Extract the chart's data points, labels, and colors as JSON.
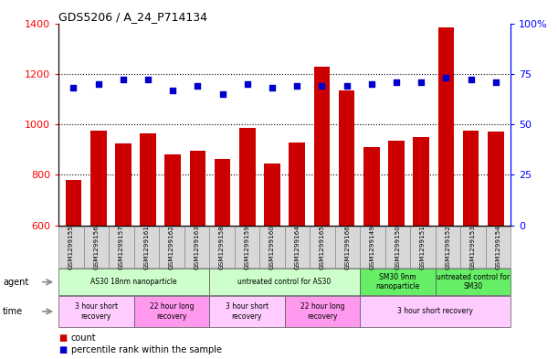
{
  "title": "GDS5206 / A_24_P714134",
  "samples": [
    "GSM1299155",
    "GSM1299156",
    "GSM1299157",
    "GSM1299161",
    "GSM1299162",
    "GSM1299163",
    "GSM1299158",
    "GSM1299159",
    "GSM1299160",
    "GSM1299164",
    "GSM1299165",
    "GSM1299166",
    "GSM1299149",
    "GSM1299150",
    "GSM1299151",
    "GSM1299152",
    "GSM1299153",
    "GSM1299154"
  ],
  "counts": [
    780,
    975,
    925,
    965,
    880,
    895,
    865,
    985,
    845,
    930,
    1230,
    1135,
    910,
    935,
    950,
    1385,
    975,
    970
  ],
  "percentiles": [
    68,
    70,
    72,
    72,
    67,
    69,
    65,
    70,
    68,
    69,
    69,
    69,
    70,
    71,
    71,
    73,
    72,
    71
  ],
  "ylim_left": [
    600,
    1400
  ],
  "ylim_right": [
    0,
    100
  ],
  "yticks_left": [
    600,
    800,
    1000,
    1200,
    1400
  ],
  "yticks_right": [
    0,
    25,
    50,
    75,
    100
  ],
  "bar_color": "#cc0000",
  "dot_color": "#0000cc",
  "agent_groups": [
    {
      "label": "AS30 18nm nanoparticle",
      "start": 0,
      "end": 6,
      "color": "#ccffcc"
    },
    {
      "label": "untreated control for AS30",
      "start": 6,
      "end": 12,
      "color": "#ccffcc"
    },
    {
      "label": "SM30 9nm\nnanoparticle",
      "start": 12,
      "end": 15,
      "color": "#66ee66"
    },
    {
      "label": "untreated control for\nSM30",
      "start": 15,
      "end": 18,
      "color": "#66ee66"
    }
  ],
  "time_groups": [
    {
      "label": "3 hour short\nrecovery",
      "start": 0,
      "end": 3,
      "color": "#ffccff"
    },
    {
      "label": "22 hour long\nrecovery",
      "start": 3,
      "end": 6,
      "color": "#ff99ee"
    },
    {
      "label": "3 hour short\nrecovery",
      "start": 6,
      "end": 9,
      "color": "#ffccff"
    },
    {
      "label": "22 hour long\nrecovery",
      "start": 9,
      "end": 12,
      "color": "#ff99ee"
    },
    {
      "label": "3 hour short recovery",
      "start": 12,
      "end": 18,
      "color": "#ffccff"
    }
  ],
  "legend_count_color": "#cc0000",
  "legend_pct_color": "#0000cc",
  "grid_lines": [
    800,
    1000,
    1200
  ]
}
